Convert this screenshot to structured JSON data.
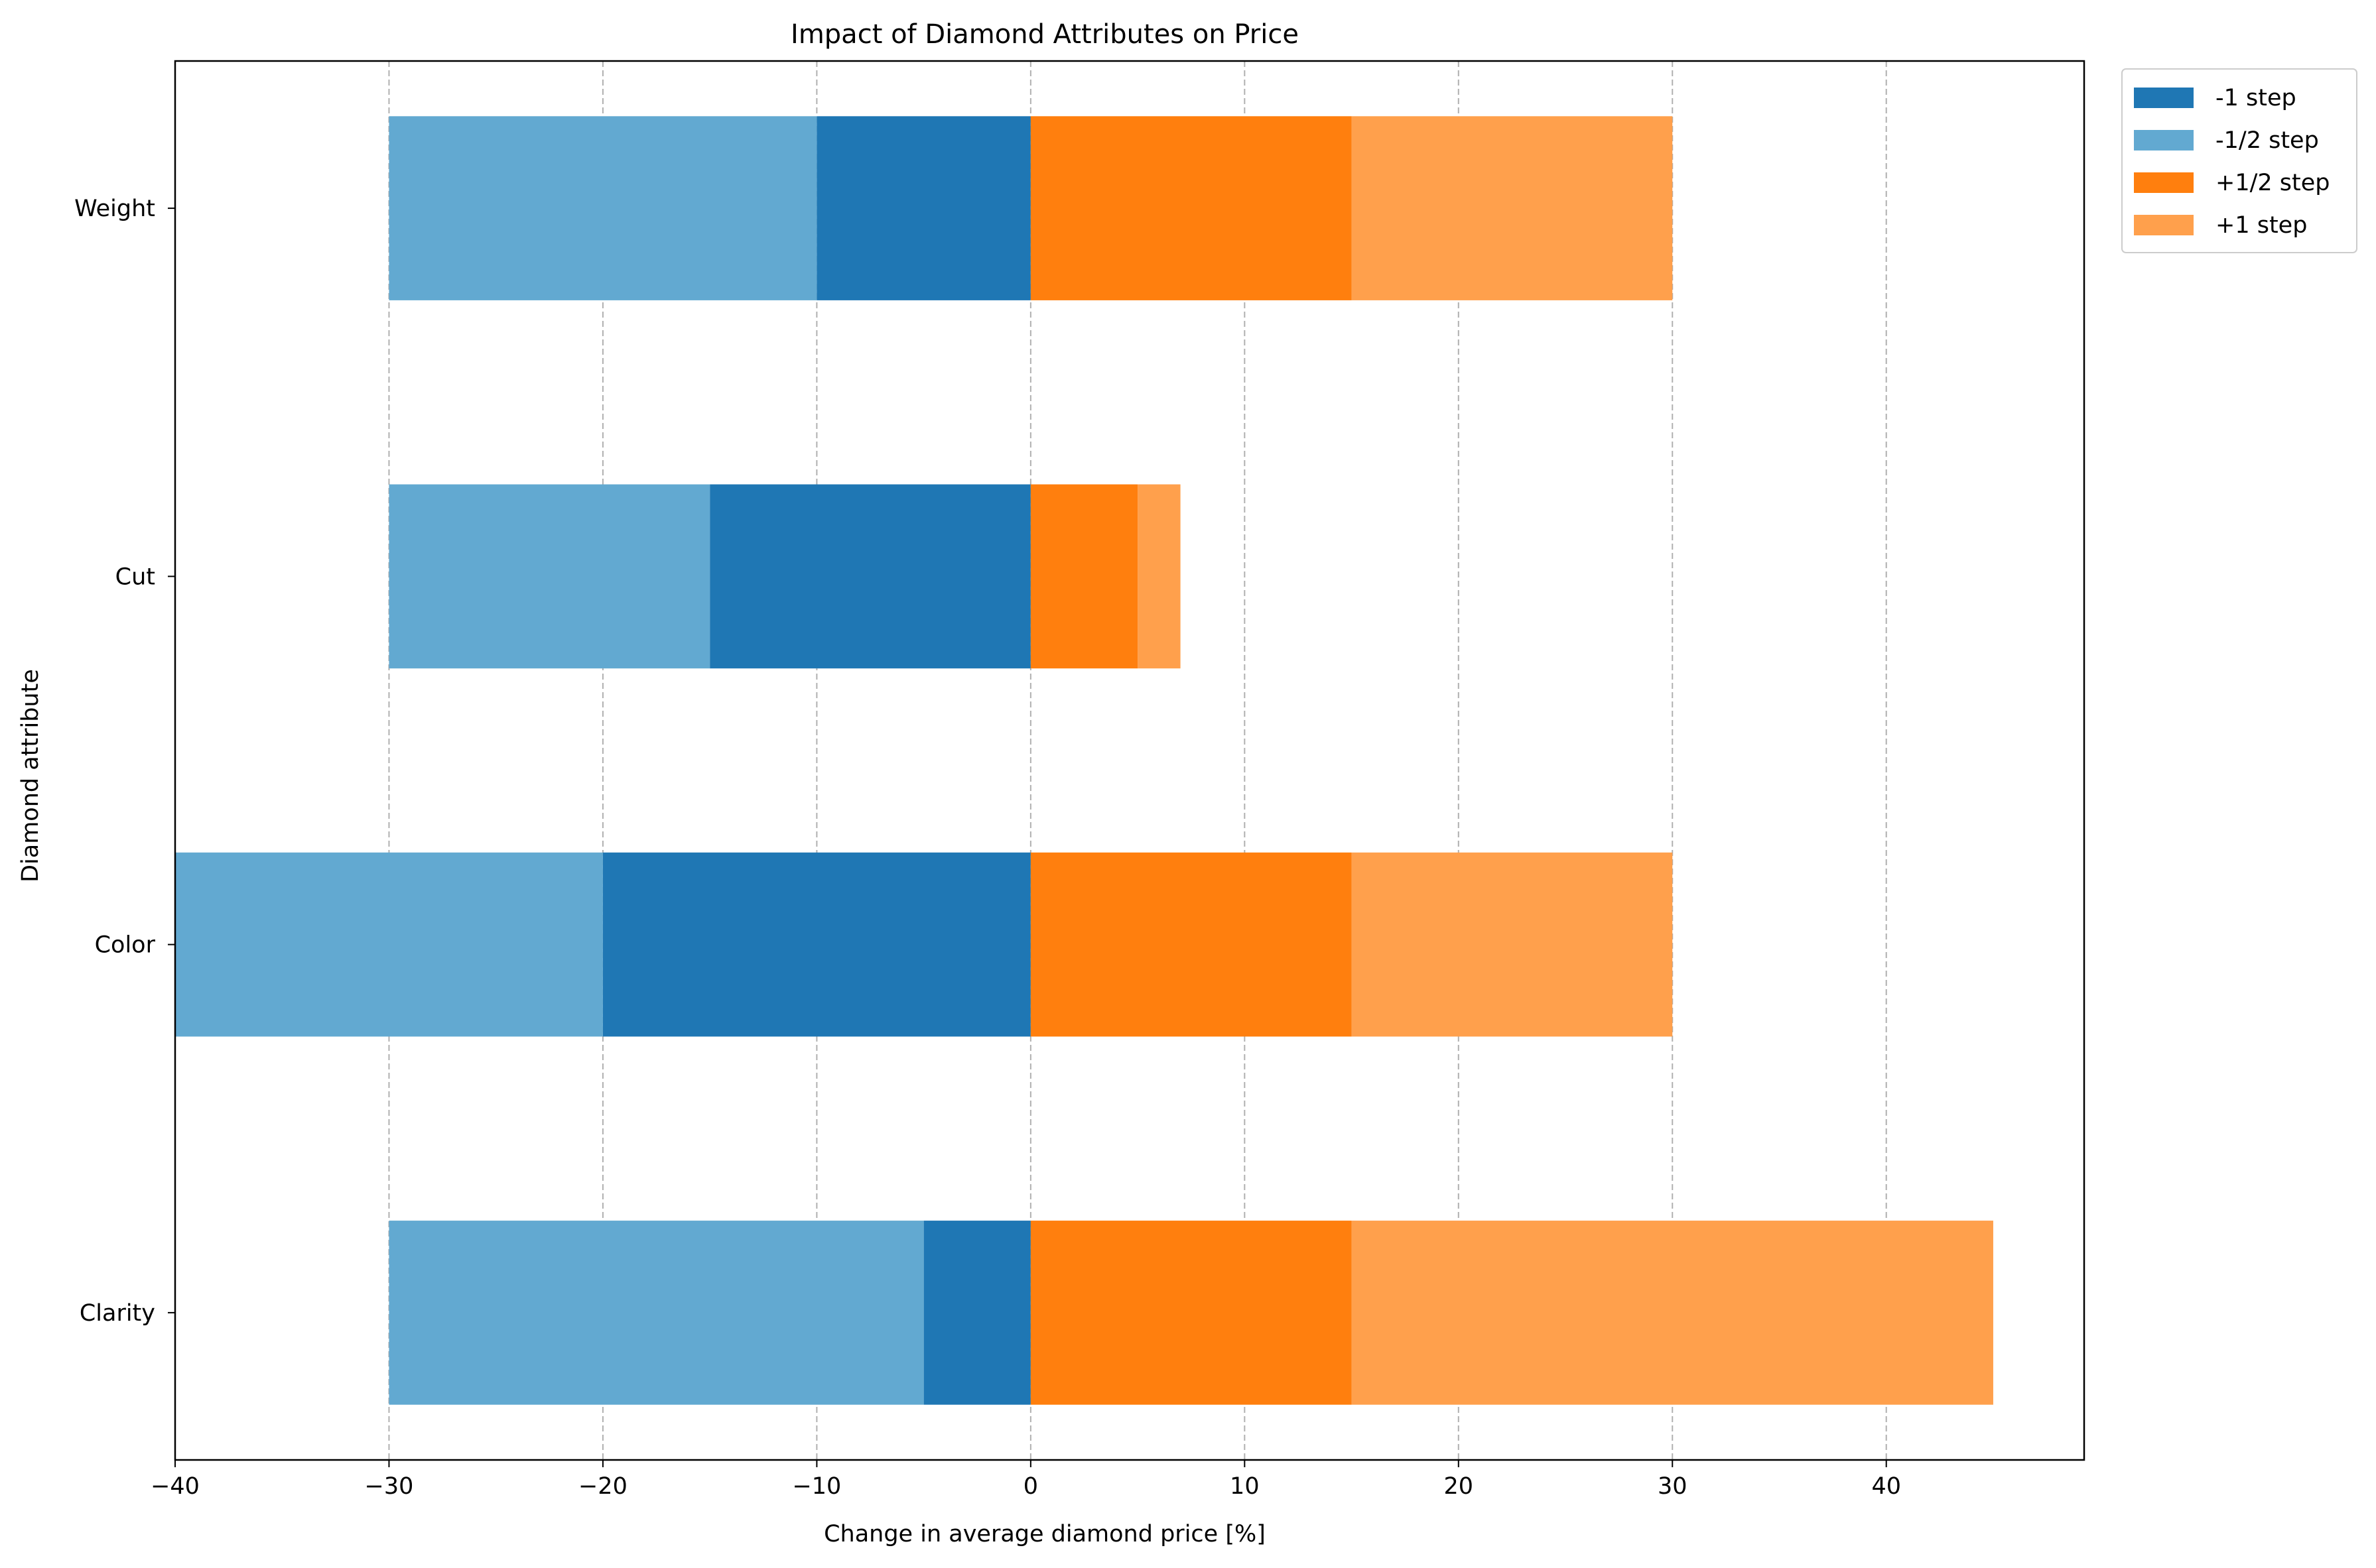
{
  "chart_data": {
    "type": "bar",
    "orientation": "horizontal",
    "stacking": "diverging",
    "title": "Impact of Diamond Attributes on Price",
    "xlabel": "Change in average diamond price [%]",
    "ylabel": "Diamond attribute",
    "categories": [
      "Clarity",
      "Color",
      "Cut",
      "Weight"
    ],
    "xlim": [
      -40,
      49.25
    ],
    "xticks": [
      -40,
      -30,
      -20,
      -10,
      0,
      10,
      20,
      30,
      40
    ],
    "xtick_labels": [
      "−40",
      "−30",
      "−20",
      "−10",
      "0",
      "10",
      "20",
      "30",
      "40"
    ],
    "grid": {
      "x": true,
      "y": false,
      "style": "dashed"
    },
    "legend_position": "outside-top-right",
    "series": [
      {
        "name": "-1 step",
        "color": "#1f77b4",
        "values": [
          -5,
          -20,
          -15,
          -10
        ]
      },
      {
        "name": "-1/2 step",
        "color": "#62a9d1",
        "values": [
          -25,
          -20,
          -15,
          -20
        ]
      },
      {
        "name": "+1/2 step",
        "color": "#ff7f0e",
        "values": [
          15,
          15,
          5,
          15
        ]
      },
      {
        "name": "+1 step",
        "color": "#ffa04c",
        "values": [
          30,
          15,
          2,
          15
        ]
      }
    ]
  }
}
